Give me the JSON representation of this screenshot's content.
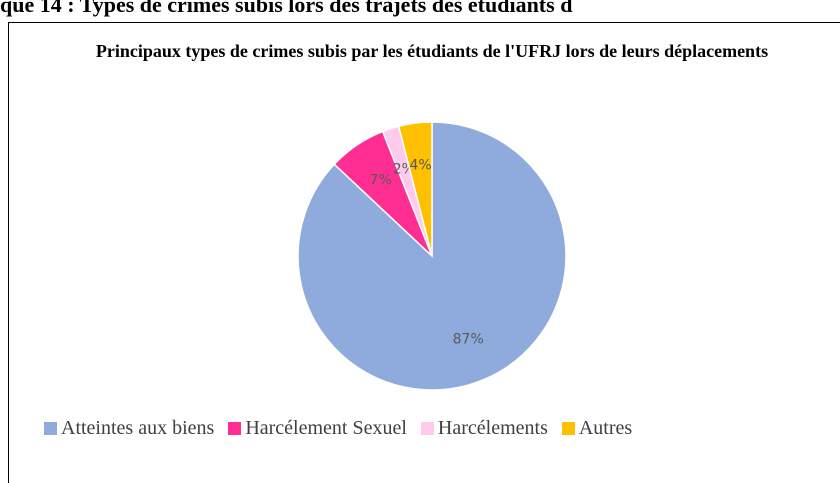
{
  "heading": "que 14 : Types de crimes subis lors des trajets des étudiants d",
  "chart_data": {
    "type": "pie",
    "title": "Principaux types de crimes subis par les étudiants de l'UFRJ lors de leurs déplacements",
    "series": [
      {
        "name": "Atteintes aux biens",
        "color": "#8faadc"
      },
      {
        "name": "Harcélement Sexuel",
        "color": "#ff2e92"
      },
      {
        "name": "Harcélements",
        "color": "#ffcaec"
      },
      {
        "name": "Autres",
        "color": "#ffc000"
      }
    ],
    "values": [
      87,
      7,
      2,
      4
    ],
    "value_labels": [
      "87%",
      "7%",
      "2%",
      "4%"
    ],
    "legend": "bottom"
  }
}
